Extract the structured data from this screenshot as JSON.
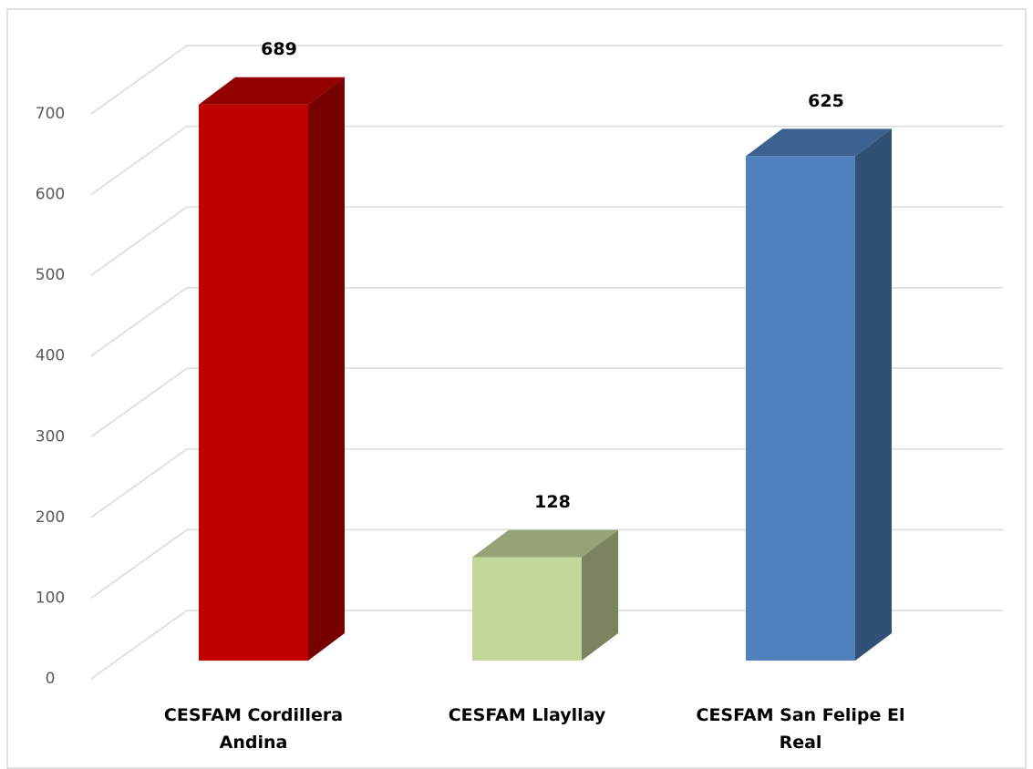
{
  "chart_data": {
    "type": "bar3d",
    "categories": [
      "CESFAM Cordillera Andina",
      "CESFAM Llayllay",
      "CESFAM San Felipe El Real"
    ],
    "values": [
      689,
      128,
      625
    ],
    "colors": [
      "#c00000",
      "#c4d79b",
      "#4f81bd"
    ],
    "ylim": [
      0,
      700
    ],
    "yticks": [
      0,
      100,
      200,
      300,
      400,
      500,
      600,
      700
    ],
    "grid": true
  }
}
